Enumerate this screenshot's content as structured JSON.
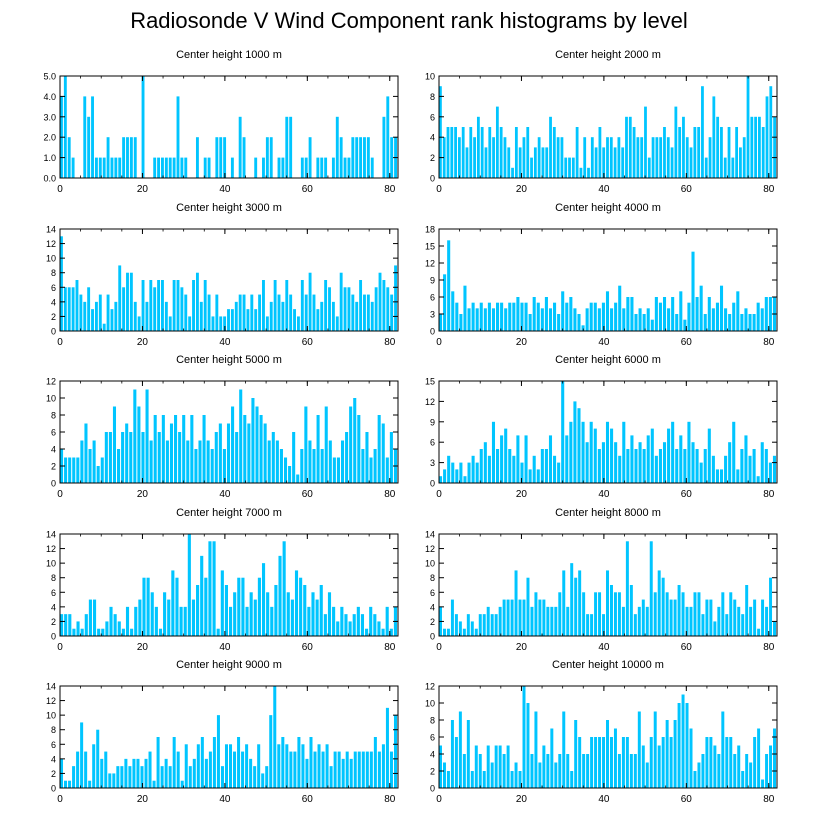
{
  "title": "Radiosonde V Wind Component rank histograms by level",
  "bar_color": "#00c5ff",
  "chart_data": [
    {
      "type": "bar",
      "title": "Center height 1000 m",
      "ylim": [
        0,
        5
      ],
      "yticks": [
        0,
        1,
        2,
        3,
        4,
        5
      ],
      "ytick_labels": [
        "0.0",
        "1.0",
        "2.0",
        "3.0",
        "4.0",
        "5.0"
      ],
      "xlim": [
        0,
        82
      ],
      "xticks": [
        0,
        20,
        40,
        60,
        80
      ],
      "xtick_labels": [
        "0",
        "20",
        "40",
        "60",
        "80"
      ],
      "values": [
        4,
        5,
        2,
        1,
        0,
        0,
        4,
        3,
        4,
        1,
        1,
        1,
        2,
        1,
        1,
        1,
        2,
        2,
        2,
        2,
        0,
        5,
        0,
        0,
        1,
        1,
        1,
        1,
        1,
        1,
        4,
        1,
        1,
        0,
        0,
        2,
        0,
        1,
        1,
        0,
        2,
        2,
        2,
        0,
        1,
        0,
        3,
        2,
        0,
        0,
        1,
        0,
        1,
        2,
        2,
        0,
        1,
        1,
        3,
        3,
        0,
        0,
        1,
        1,
        2,
        0,
        1,
        1,
        1,
        0,
        1,
        3,
        2,
        1,
        1,
        2,
        2,
        2,
        2,
        2,
        1,
        0,
        0,
        3,
        4,
        2,
        2
      ]
    },
    {
      "type": "bar",
      "title": "Center height 2000 m",
      "ylim": [
        0,
        10
      ],
      "yticks": [
        0,
        2,
        4,
        6,
        8,
        10
      ],
      "ytick_labels": [
        "0",
        "2",
        "4",
        "6",
        "8",
        "10"
      ],
      "xlim": [
        0,
        82
      ],
      "xticks": [
        0,
        20,
        40,
        60,
        80
      ],
      "xtick_labels": [
        "0",
        "20",
        "40",
        "60",
        "80"
      ],
      "values": [
        9,
        4,
        5,
        5,
        5,
        4,
        5,
        3,
        5,
        4,
        6,
        5,
        3,
        5,
        4,
        7,
        5,
        4,
        3,
        1,
        5,
        3,
        4,
        5,
        2,
        3,
        4,
        3,
        3,
        6,
        5,
        4,
        4,
        2,
        2,
        2,
        5,
        1,
        4,
        1,
        4,
        3,
        5,
        3,
        4,
        4,
        3,
        4,
        3,
        6,
        6,
        5,
        4,
        4,
        7,
        2,
        4,
        4,
        4,
        5,
        4,
        3,
        7,
        5,
        6,
        4,
        3,
        5,
        5,
        9,
        2,
        4,
        8,
        6,
        5,
        2,
        5,
        2,
        5,
        3,
        4,
        10,
        6,
        6,
        6,
        5,
        8,
        9,
        6
      ]
    },
    {
      "type": "bar",
      "title": "Center height 3000 m",
      "ylim": [
        0,
        14
      ],
      "yticks": [
        0,
        2,
        4,
        6,
        8,
        10,
        12,
        14
      ],
      "ytick_labels": [
        "0",
        "2",
        "4",
        "6",
        "8",
        "10",
        "12",
        "14"
      ],
      "xlim": [
        0,
        82
      ],
      "xticks": [
        0,
        20,
        40,
        60,
        80
      ],
      "xtick_labels": [
        "0",
        "20",
        "40",
        "60",
        "80"
      ],
      "values": [
        13,
        6,
        6,
        6,
        7,
        5,
        4,
        6,
        3,
        4,
        5,
        1,
        5,
        3,
        4,
        9,
        6,
        8,
        8,
        4,
        2,
        7,
        4,
        7,
        6,
        7,
        7,
        4,
        2,
        7,
        7,
        6,
        5,
        2,
        7,
        8,
        4,
        7,
        5,
        2,
        5,
        2,
        2,
        3,
        3,
        4,
        5,
        5,
        3,
        5,
        3,
        5,
        7,
        2,
        4,
        7,
        5,
        4,
        7,
        5,
        3,
        2,
        7,
        5,
        8,
        5,
        3,
        4,
        7,
        6,
        4,
        2,
        8,
        6,
        6,
        5,
        4,
        7,
        5,
        5,
        4,
        6,
        8,
        7,
        6,
        5,
        9
      ]
    },
    {
      "type": "bar",
      "title": "Center height 4000 m",
      "ylim": [
        0,
        18
      ],
      "yticks": [
        0,
        3,
        6,
        9,
        12,
        15,
        18
      ],
      "ytick_labels": [
        "0",
        "3",
        "6",
        "9",
        "12",
        "15",
        "18"
      ],
      "xlim": [
        0,
        82
      ],
      "xticks": [
        0,
        20,
        40,
        60,
        80
      ],
      "xtick_labels": [
        "0",
        "20",
        "40",
        "60",
        "80"
      ],
      "values": [
        3,
        10,
        16,
        7,
        5,
        3,
        8,
        4,
        5,
        4,
        5,
        4,
        5,
        4,
        5,
        5,
        4,
        5,
        5,
        6,
        5,
        5,
        3,
        6,
        5,
        4,
        6,
        4,
        5,
        3,
        7,
        5,
        6,
        4,
        3,
        1,
        4,
        5,
        5,
        4,
        5,
        7,
        4,
        5,
        8,
        4,
        6,
        6,
        3,
        4,
        3,
        4,
        2,
        6,
        5,
        6,
        4,
        6,
        3,
        7,
        2,
        5,
        14,
        6,
        8,
        3,
        6,
        4,
        5,
        8,
        4,
        3,
        5,
        7,
        3,
        4,
        3,
        3,
        5,
        4,
        6,
        6,
        6
      ]
    },
    {
      "type": "bar",
      "title": "Center height 5000 m",
      "ylim": [
        0,
        12
      ],
      "yticks": [
        0,
        2,
        4,
        6,
        8,
        10,
        12
      ],
      "ytick_labels": [
        "0",
        "2",
        "4",
        "6",
        "8",
        "10",
        "12"
      ],
      "xlim": [
        0,
        82
      ],
      "xticks": [
        0,
        20,
        40,
        60,
        80
      ],
      "xtick_labels": [
        "0",
        "20",
        "40",
        "60",
        "80"
      ],
      "values": [
        4,
        3,
        3,
        3,
        3,
        5,
        7,
        4,
        5,
        2,
        3,
        6,
        6,
        9,
        4,
        6,
        7,
        6,
        11,
        9,
        6,
        11,
        5,
        8,
        6,
        8,
        5,
        7,
        8,
        6,
        8,
        5,
        8,
        4,
        5,
        8,
        5,
        4,
        6,
        7,
        4,
        7,
        9,
        6,
        11,
        8,
        7,
        10,
        9,
        8,
        7,
        5,
        6,
        5,
        4,
        3,
        2,
        6,
        1,
        4,
        9,
        5,
        4,
        8,
        4,
        9,
        5,
        3,
        3,
        5,
        6,
        9,
        10,
        8,
        4,
        6,
        3,
        4,
        8,
        7,
        3,
        6,
        4
      ]
    },
    {
      "type": "bar",
      "title": "Center height 6000 m",
      "ylim": [
        0,
        15
      ],
      "yticks": [
        0,
        3,
        6,
        9,
        12,
        15
      ],
      "ytick_labels": [
        "0",
        "3",
        "6",
        "9",
        "12",
        "15"
      ],
      "xlim": [
        0,
        82
      ],
      "xticks": [
        0,
        20,
        40,
        60,
        80
      ],
      "xtick_labels": [
        "0",
        "20",
        "40",
        "60",
        "80"
      ],
      "values": [
        1,
        2,
        4,
        3,
        2,
        3,
        1,
        3,
        4,
        3,
        5,
        6,
        4,
        9,
        5,
        7,
        8,
        5,
        4,
        7,
        3,
        7,
        2,
        4,
        2,
        5,
        5,
        7,
        4,
        3,
        15,
        7,
        9,
        12,
        11,
        9,
        6,
        9,
        8,
        5,
        6,
        9,
        8,
        6,
        4,
        9,
        5,
        7,
        5,
        6,
        5,
        7,
        8,
        4,
        5,
        6,
        8,
        9,
        5,
        7,
        5,
        9,
        6,
        5,
        3,
        5,
        8,
        4,
        2,
        2,
        4,
        6,
        9,
        2,
        5,
        7,
        4,
        5,
        1,
        6,
        5,
        3,
        4
      ]
    },
    {
      "type": "bar",
      "title": "Center height 7000 m",
      "ylim": [
        0,
        14
      ],
      "yticks": [
        0,
        2,
        4,
        6,
        8,
        10,
        12,
        14
      ],
      "ytick_labels": [
        "0",
        "2",
        "4",
        "6",
        "8",
        "10",
        "12",
        "14"
      ],
      "xlim": [
        0,
        82
      ],
      "xticks": [
        0,
        20,
        40,
        60,
        80
      ],
      "xtick_labels": [
        "0",
        "20",
        "40",
        "60",
        "80"
      ],
      "values": [
        3,
        3,
        3,
        1,
        2,
        1,
        3,
        5,
        5,
        1,
        1,
        2,
        4,
        3,
        2,
        1,
        4,
        1,
        4,
        5,
        8,
        8,
        6,
        4,
        1,
        6,
        5,
        9,
        8,
        4,
        4,
        14,
        5,
        7,
        11,
        8,
        13,
        13,
        1,
        9,
        7,
        4,
        6,
        8,
        8,
        4,
        6,
        5,
        8,
        10,
        6,
        4,
        7,
        11,
        13,
        6,
        5,
        9,
        8,
        7,
        4,
        6,
        5,
        7,
        3,
        6,
        4,
        2,
        4,
        3,
        2,
        3,
        4,
        3,
        1,
        4,
        3,
        2,
        1,
        4,
        1,
        4
      ]
    },
    {
      "type": "bar",
      "title": "Center height 8000 m",
      "ylim": [
        0,
        14
      ],
      "yticks": [
        0,
        2,
        4,
        6,
        8,
        10,
        12,
        14
      ],
      "ytick_labels": [
        "0",
        "2",
        "4",
        "6",
        "8",
        "10",
        "12",
        "14"
      ],
      "xlim": [
        0,
        82
      ],
      "xticks": [
        0,
        20,
        40,
        60,
        80
      ],
      "xtick_labels": [
        "0",
        "20",
        "40",
        "60",
        "80"
      ],
      "values": [
        4,
        1,
        1,
        5,
        3,
        2,
        1,
        3,
        2,
        1,
        3,
        3,
        4,
        3,
        3,
        4,
        5,
        5,
        5,
        9,
        5,
        5,
        8,
        4,
        6,
        5,
        5,
        4,
        4,
        4,
        6,
        9,
        4,
        10,
        8,
        9,
        6,
        3,
        3,
        6,
        6,
        3,
        9,
        7,
        6,
        6,
        4,
        13,
        7,
        3,
        4,
        5,
        4,
        13,
        6,
        9,
        8,
        6,
        5,
        5,
        7,
        6,
        4,
        4,
        6,
        6,
        3,
        5,
        5,
        2,
        4,
        6,
        3,
        6,
        5,
        4,
        3,
        7,
        4,
        5,
        1,
        5,
        4,
        8,
        2
      ]
    },
    {
      "type": "bar",
      "title": "Center height 9000 m",
      "ylim": [
        0,
        14
      ],
      "yticks": [
        0,
        2,
        4,
        6,
        8,
        10,
        12,
        14
      ],
      "ytick_labels": [
        "0",
        "2",
        "4",
        "6",
        "8",
        "10",
        "12",
        "14"
      ],
      "xlim": [
        0,
        82
      ],
      "xticks": [
        0,
        20,
        40,
        60,
        80
      ],
      "xtick_labels": [
        "0",
        "20",
        "40",
        "60",
        "80"
      ],
      "values": [
        4,
        1,
        1,
        3,
        5,
        9,
        5,
        1,
        6,
        8,
        4,
        5,
        2,
        2,
        3,
        3,
        4,
        3,
        4,
        4,
        3,
        4,
        5,
        1,
        7,
        3,
        4,
        3,
        7,
        5,
        1,
        6,
        3,
        4,
        6,
        7,
        4,
        5,
        7,
        10,
        3,
        6,
        6,
        5,
        7,
        5,
        6,
        4,
        3,
        6,
        2,
        3,
        10,
        14,
        6,
        7,
        6,
        5,
        5,
        7,
        6,
        4,
        7,
        5,
        6,
        5,
        6,
        3,
        5,
        5,
        4,
        5,
        4,
        5,
        5,
        5,
        5,
        5,
        7,
        5,
        6,
        11,
        5,
        10
      ]
    },
    {
      "type": "bar",
      "title": "Center height 10000 m",
      "ylim": [
        0,
        12
      ],
      "yticks": [
        0,
        2,
        4,
        6,
        8,
        10,
        12
      ],
      "ytick_labels": [
        "0",
        "2",
        "4",
        "6",
        "8",
        "10",
        "12"
      ],
      "xlim": [
        0,
        82
      ],
      "xticks": [
        0,
        20,
        40,
        60,
        80
      ],
      "xtick_labels": [
        "0",
        "20",
        "40",
        "60",
        "80"
      ],
      "values": [
        5,
        3,
        2,
        8,
        6,
        9,
        4,
        8,
        2,
        5,
        4,
        2,
        5,
        3,
        5,
        5,
        4,
        5,
        2,
        3,
        2,
        12,
        10,
        4,
        9,
        3,
        5,
        4,
        7,
        3,
        4,
        9,
        4,
        2,
        8,
        6,
        4,
        4,
        6,
        6,
        6,
        6,
        8,
        6,
        7,
        4,
        6,
        6,
        4,
        4,
        9,
        5,
        3,
        6,
        9,
        5,
        6,
        8,
        6,
        8,
        10,
        11,
        10,
        7,
        2,
        3,
        4,
        6,
        6,
        5,
        4,
        9,
        6,
        6,
        4,
        5,
        2,
        4,
        3,
        6,
        7,
        1,
        4,
        5,
        7
      ]
    }
  ]
}
